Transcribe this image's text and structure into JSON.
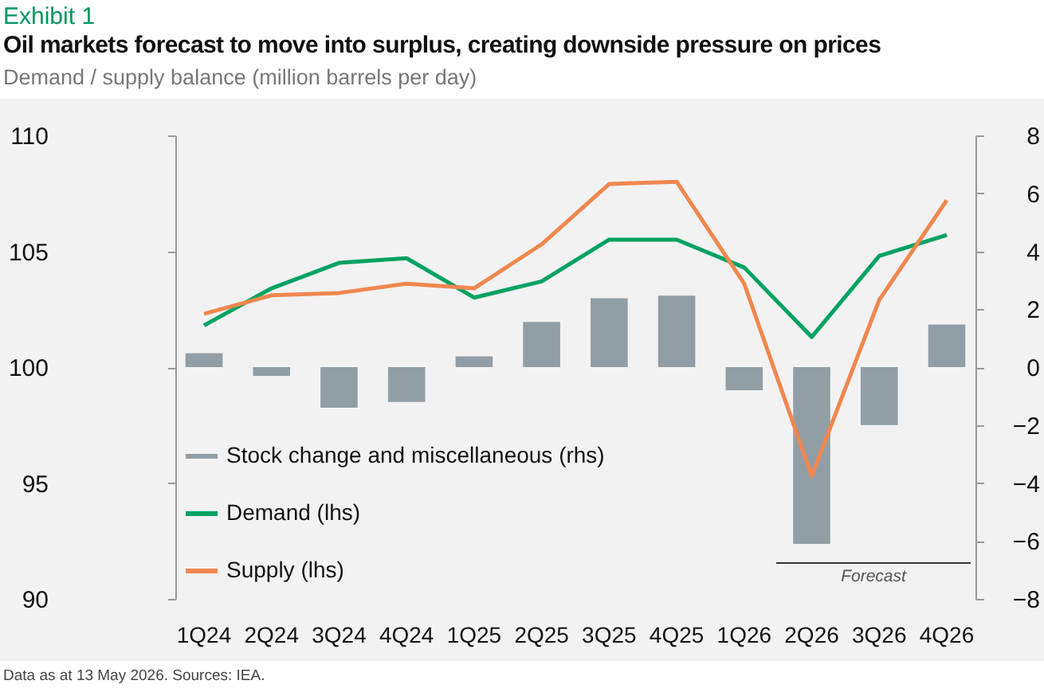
{
  "chart_data": {
    "type": "line",
    "title": "Oil markets forecast to move into surplus, creating downside pressure on prices",
    "subtitle": "Demand / supply balance (million barrels per day)",
    "annotations": [
      "Exhibit 1",
      "Data as at 13 May 2026. Sources: IEA.",
      "Forecast"
    ],
    "categories": [
      "1Q24",
      "2Q24",
      "3Q24",
      "4Q24",
      "1Q25",
      "2Q25",
      "3Q25",
      "4Q25",
      "1Q26",
      "2Q26",
      "3Q26",
      "4Q26"
    ],
    "series": [
      {
        "name": "Stock change and miscellaneous (rhs)",
        "type": "bar",
        "axis": "y2",
        "color": "#929ea6",
        "values": [
          0.48,
          -0.3,
          -1.4,
          -1.2,
          0.37,
          1.56,
          2.38,
          2.47,
          -0.8,
          -6.1,
          -2.0,
          1.47
        ]
      },
      {
        "name": "Demand (lhs)",
        "color": "#00a262",
        "values": [
          101.8,
          103.4,
          104.5,
          104.7,
          103.0,
          103.7,
          105.5,
          105.5,
          104.3,
          101.3,
          104.8,
          105.7
        ]
      },
      {
        "name": "Supply (lhs)",
        "color": "#f0874f",
        "values": [
          102.3,
          103.1,
          103.2,
          103.6,
          103.4,
          105.3,
          107.9,
          108.0,
          103.6,
          95.3,
          102.9,
          107.2
        ]
      }
    ],
    "ylim": [
      90,
      110
    ],
    "yticks": [
      90,
      95,
      100,
      105,
      110
    ],
    "y2lim": [
      -8,
      8
    ],
    "y2ticks": [
      -8,
      -6,
      -4,
      -2,
      0,
      2,
      4,
      6,
      8
    ],
    "legend": "bottom left",
    "grid": false,
    "marker": "none",
    "line_style": "solid"
  }
}
